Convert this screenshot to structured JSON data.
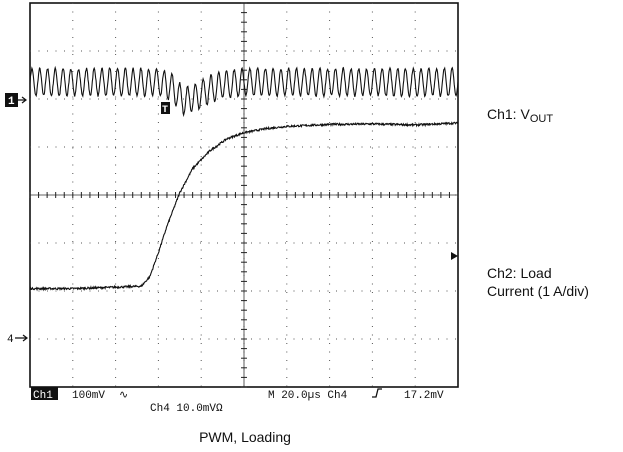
{
  "right_labels": {
    "ch1_prefix": "Ch1:  V",
    "ch1_sub": "OUT",
    "ch2_line1": "Ch2:  Load",
    "ch2_line2": "Current (1 A/div)"
  },
  "caption": "PWM, Loading",
  "scope_readout": {
    "ch1_marker": "1",
    "ch4_marker": "4",
    "ch1_badge": "Ch1",
    "ch1_scale": "100mV",
    "ch4_scale": "Ch4  10.0mVΩ",
    "timebase": "M 20.0µs  Ch4",
    "trigger_level": "17.2mV",
    "trigger_marker": "T"
  },
  "chart_data": {
    "type": "line",
    "grid": true,
    "x_divisions": 10,
    "y_divisions": 8,
    "xlim": [
      0,
      10
    ],
    "ylim": [
      0,
      8
    ],
    "series": [
      {
        "name": "Ch1",
        "description": "output voltage ripple, dips at load step then recovers",
        "points": [
          [
            0,
            6.35
          ],
          [
            0.5,
            6.35
          ],
          [
            1,
            6.35
          ],
          [
            1.5,
            6.35
          ],
          [
            2,
            6.35
          ],
          [
            2.5,
            6.35
          ],
          [
            3,
            6.35
          ],
          [
            3.3,
            6.25
          ],
          [
            3.6,
            5.95
          ],
          [
            3.9,
            6.05
          ],
          [
            4.2,
            6.2
          ],
          [
            4.5,
            6.3
          ],
          [
            5,
            6.35
          ],
          [
            6,
            6.35
          ],
          [
            7,
            6.35
          ],
          [
            8,
            6.35
          ],
          [
            9,
            6.35
          ],
          [
            10,
            6.35
          ]
        ],
        "ripple_cycles": 55,
        "ripple_amplitude_div": 0.28
      },
      {
        "name": "Ch2",
        "description": "load current step",
        "points": [
          [
            0,
            2.05
          ],
          [
            1,
            2.05
          ],
          [
            2,
            2.08
          ],
          [
            2.6,
            2.1
          ],
          [
            2.8,
            2.3
          ],
          [
            3,
            2.8
          ],
          [
            3.2,
            3.35
          ],
          [
            3.5,
            4.05
          ],
          [
            3.8,
            4.55
          ],
          [
            4.2,
            4.92
          ],
          [
            4.6,
            5.17
          ],
          [
            5,
            5.3
          ],
          [
            5.5,
            5.38
          ],
          [
            6,
            5.43
          ],
          [
            7,
            5.47
          ],
          [
            8,
            5.48
          ],
          [
            9,
            5.46
          ],
          [
            10,
            5.5
          ]
        ]
      }
    ]
  }
}
